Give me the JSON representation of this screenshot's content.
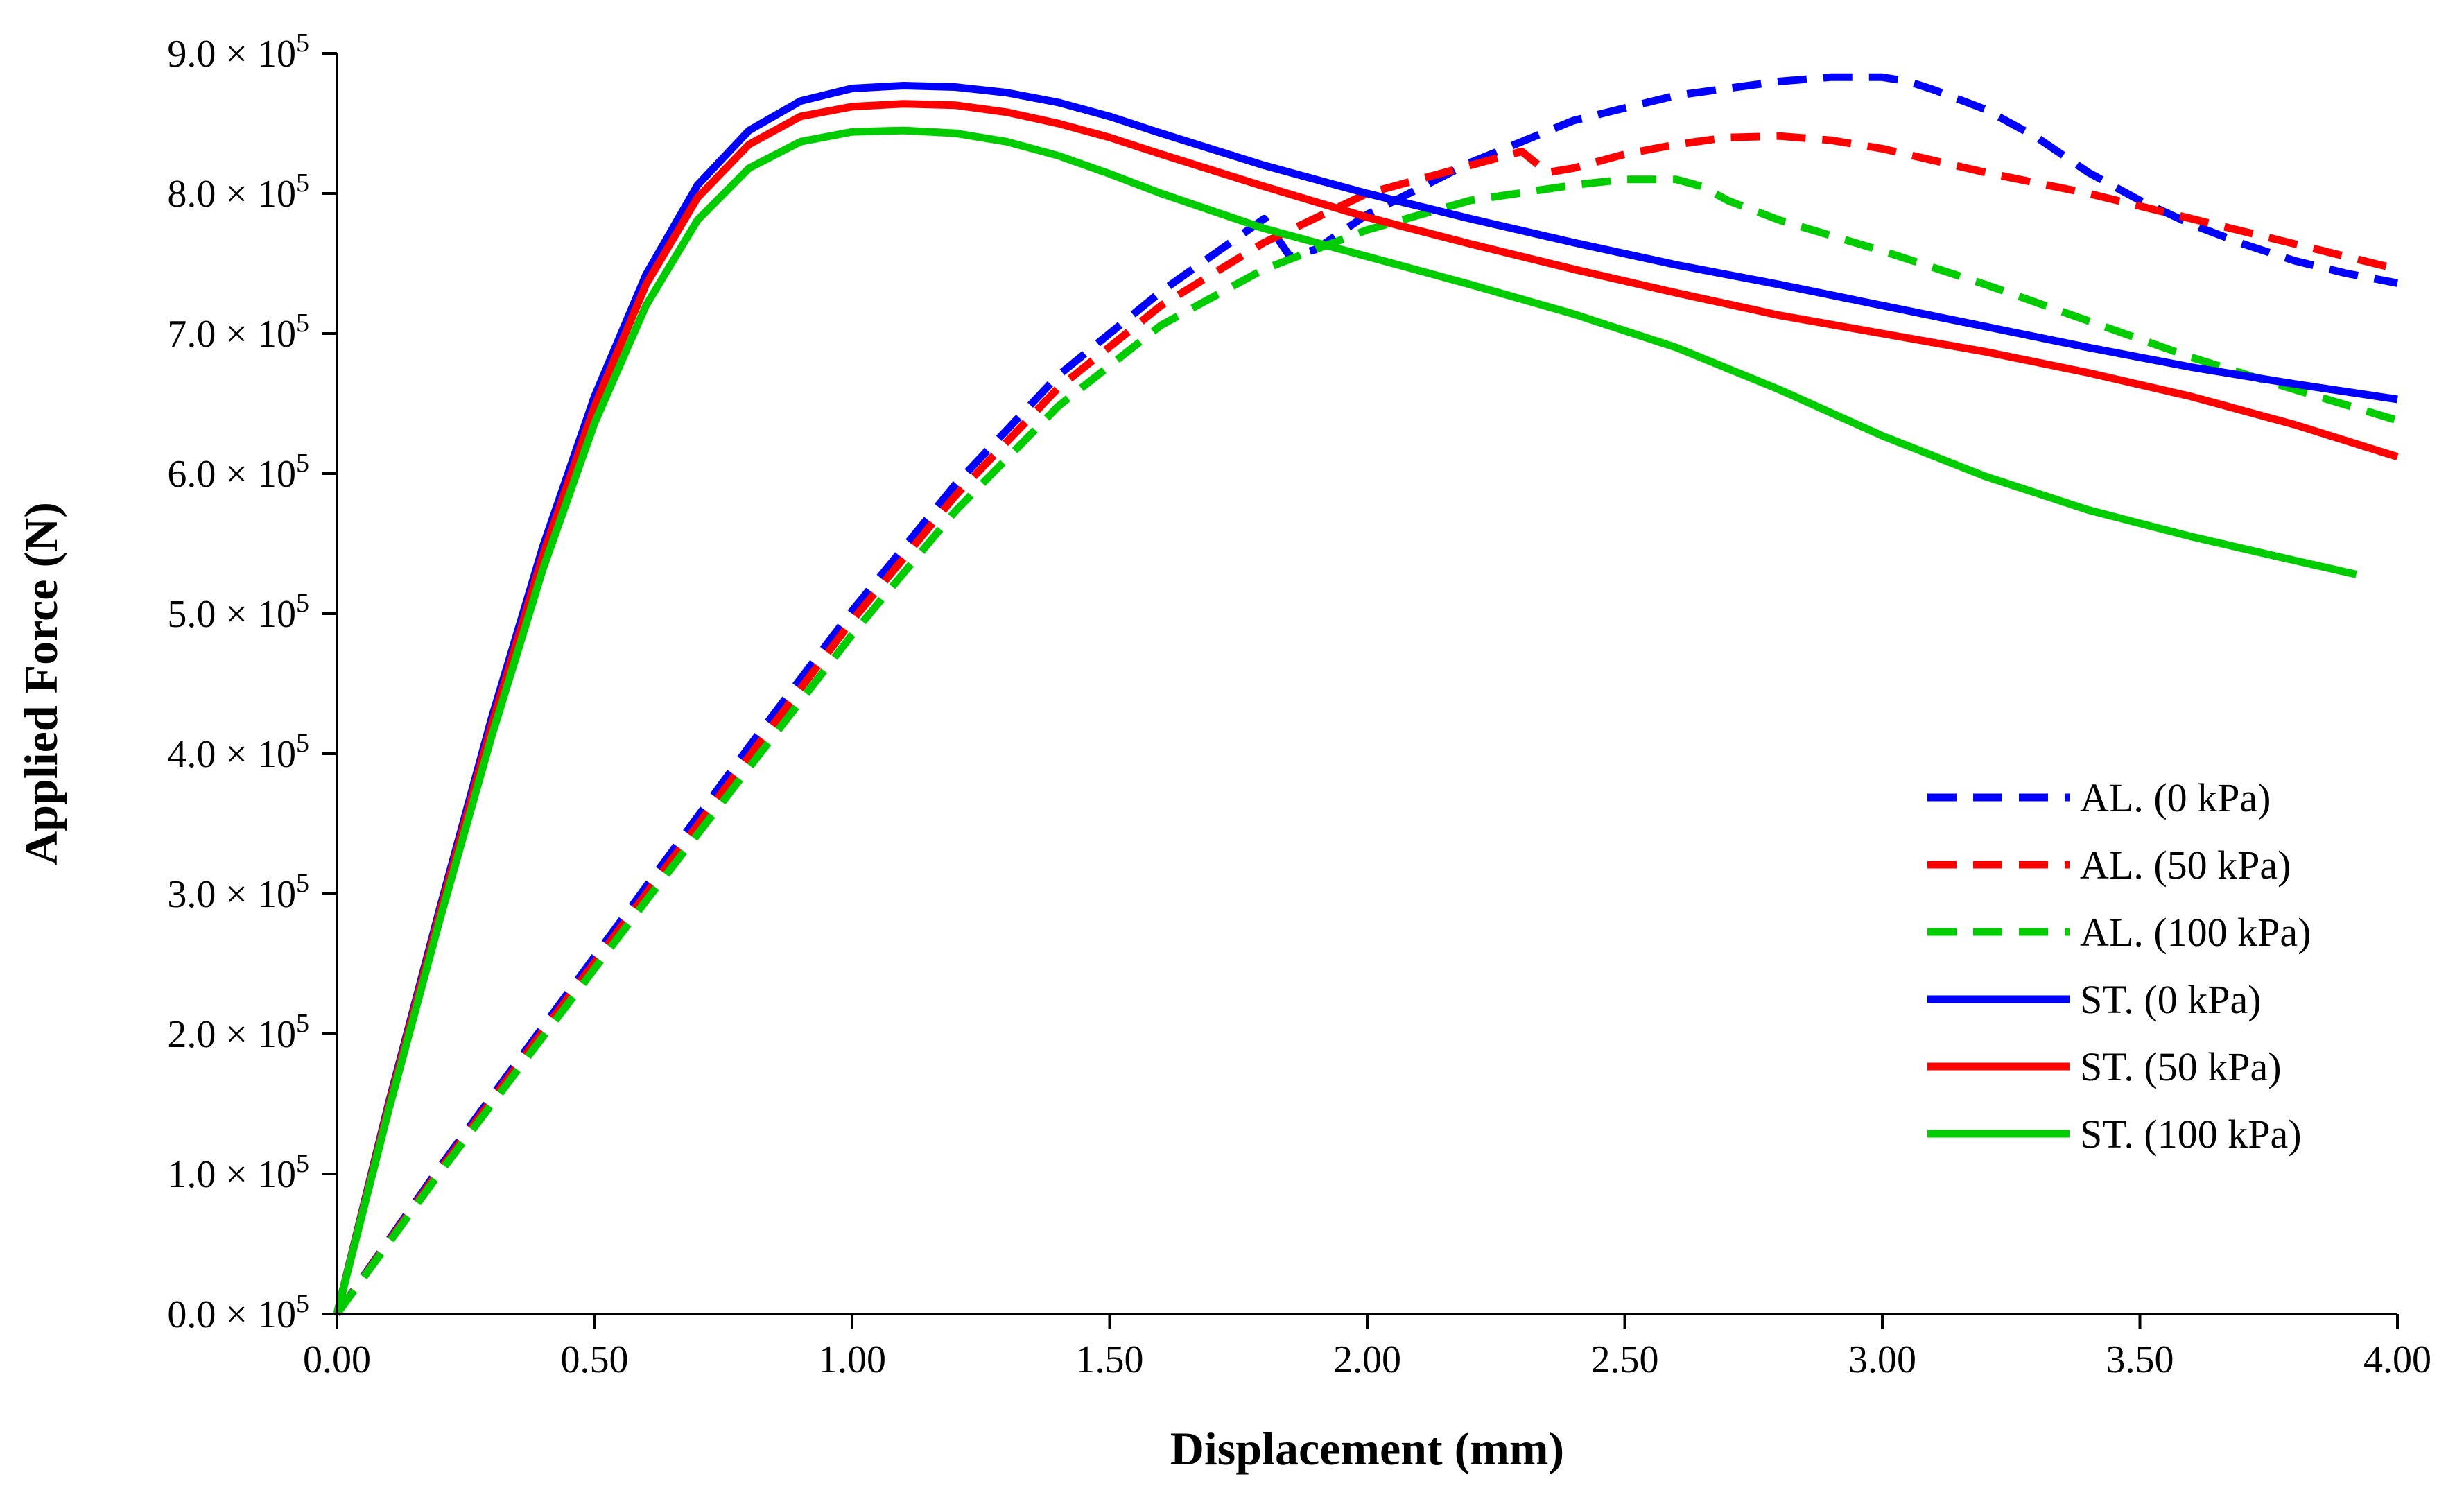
{
  "chart_data": {
    "type": "line",
    "title": "",
    "xlabel": "Displacement (mm)",
    "ylabel": "Applied Force (N)",
    "xlim": [
      0,
      4
    ],
    "ylim": [
      0,
      900000
    ],
    "x_ticks": [
      "0.00",
      "0.50",
      "1.00",
      "1.50",
      "2.00",
      "2.50",
      "3.00",
      "3.50",
      "4.00"
    ],
    "y_ticks": [
      {
        "value": 0,
        "mantissa": "0.0 × 10",
        "exponent": "5"
      },
      {
        "value": 100000,
        "mantissa": "1.0 × 10",
        "exponent": "5"
      },
      {
        "value": 200000,
        "mantissa": "2.0 × 10",
        "exponent": "5"
      },
      {
        "value": 300000,
        "mantissa": "3.0 × 10",
        "exponent": "5"
      },
      {
        "value": 400000,
        "mantissa": "4.0 × 10",
        "exponent": "5"
      },
      {
        "value": 500000,
        "mantissa": "5.0 × 10",
        "exponent": "5"
      },
      {
        "value": 600000,
        "mantissa": "6.0 × 10",
        "exponent": "5"
      },
      {
        "value": 700000,
        "mantissa": "7.0 × 10",
        "exponent": "5"
      },
      {
        "value": 800000,
        "mantissa": "8.0 × 10",
        "exponent": "5"
      },
      {
        "value": 900000,
        "mantissa": "9.0 × 10",
        "exponent": "5"
      }
    ],
    "grid": false,
    "legend_position": "bottom-right",
    "series": [
      {
        "name": "AL. (0 kPa)",
        "color": "#0000ff",
        "dash": true,
        "x": [
          0,
          0.2,
          0.4,
          0.6,
          0.8,
          1.0,
          1.2,
          1.4,
          1.6,
          1.8,
          1.85,
          1.9,
          2.0,
          2.2,
          2.4,
          2.6,
          2.8,
          2.9,
          3.0,
          3.05,
          3.1,
          3.2,
          3.3,
          3.4,
          3.5,
          3.6,
          3.7,
          3.8,
          3.9,
          4.0
        ],
        "y": [
          0,
          105000,
          205000,
          305000,
          405000,
          502000,
          592000,
          670000,
          730000,
          782000,
          755000,
          760000,
          785000,
          822000,
          852000,
          870000,
          880000,
          883000,
          883000,
          880000,
          874000,
          860000,
          840000,
          815000,
          795000,
          778000,
          764000,
          752000,
          743000,
          736000
        ]
      },
      {
        "name": "AL. (50 kPa)",
        "color": "#ff0000",
        "dash": true,
        "x": [
          0,
          0.2,
          0.4,
          0.6,
          0.8,
          1.0,
          1.2,
          1.4,
          1.6,
          1.8,
          2.0,
          2.2,
          2.3,
          2.35,
          2.4,
          2.5,
          2.6,
          2.7,
          2.8,
          2.9,
          3.0,
          3.2,
          3.4,
          3.6,
          3.8,
          4.0
        ],
        "y": [
          0,
          103000,
          202000,
          300000,
          398000,
          495000,
          584000,
          661000,
          720000,
          765000,
          800000,
          820000,
          830000,
          815000,
          818000,
          828000,
          835000,
          840000,
          841000,
          838000,
          832000,
          815000,
          800000,
          782000,
          764000,
          746000
        ]
      },
      {
        "name": "AL. (100 kPa)",
        "color": "#00cc00",
        "dash": true,
        "x": [
          0,
          0.2,
          0.4,
          0.6,
          0.8,
          1.0,
          1.2,
          1.4,
          1.6,
          1.8,
          2.0,
          2.2,
          2.4,
          2.5,
          2.6,
          2.65,
          2.7,
          2.8,
          3.0,
          3.2,
          3.4,
          3.6,
          3.8,
          4.0
        ],
        "y": [
          0,
          101000,
          198000,
          295000,
          390000,
          485000,
          573000,
          648000,
          706000,
          746000,
          774000,
          795000,
          806000,
          810000,
          810000,
          805000,
          795000,
          781000,
          759000,
          735000,
          709000,
          683000,
          660000,
          638000
        ]
      },
      {
        "name": "ST. (0 kPa)",
        "color": "#0000ff",
        "dash": false,
        "x": [
          0,
          0.1,
          0.2,
          0.3,
          0.4,
          0.5,
          0.6,
          0.7,
          0.8,
          0.9,
          1.0,
          1.1,
          1.2,
          1.3,
          1.4,
          1.5,
          1.6,
          1.8,
          2.0,
          2.2,
          2.4,
          2.6,
          2.8,
          3.0,
          3.2,
          3.4,
          3.6,
          3.8,
          4.0
        ],
        "y": [
          0,
          150000,
          290000,
          425000,
          548000,
          655000,
          742000,
          806000,
          845000,
          866000,
          875000,
          877000,
          876000,
          872000,
          865000,
          855000,
          843000,
          820000,
          800000,
          782000,
          765000,
          749000,
          735000,
          720000,
          705000,
          690000,
          676000,
          664000,
          653000
        ]
      },
      {
        "name": "ST. (50 kPa)",
        "color": "#ff0000",
        "dash": false,
        "x": [
          0,
          0.1,
          0.2,
          0.3,
          0.4,
          0.5,
          0.6,
          0.7,
          0.8,
          0.9,
          1.0,
          1.1,
          1.2,
          1.3,
          1.4,
          1.5,
          1.6,
          1.8,
          2.0,
          2.2,
          2.4,
          2.6,
          2.8,
          3.0,
          3.2,
          3.4,
          3.6,
          3.8,
          4.0
        ],
        "y": [
          0,
          148000,
          287000,
          420000,
          542000,
          648000,
          735000,
          797000,
          835000,
          855000,
          862000,
          864000,
          863000,
          858000,
          850000,
          840000,
          828000,
          805000,
          783000,
          764000,
          746000,
          729000,
          713000,
          700000,
          687000,
          672000,
          655000,
          635000,
          612000
        ]
      },
      {
        "name": "ST. (100 kPa)",
        "color": "#00cc00",
        "dash": false,
        "x": [
          0,
          0.1,
          0.2,
          0.3,
          0.4,
          0.5,
          0.6,
          0.7,
          0.8,
          0.9,
          1.0,
          1.1,
          1.2,
          1.3,
          1.4,
          1.5,
          1.6,
          1.8,
          2.0,
          2.2,
          2.4,
          2.6,
          2.8,
          3.0,
          3.2,
          3.4,
          3.6,
          3.8,
          3.92
        ],
        "y": [
          0,
          145000,
          282000,
          412000,
          532000,
          636000,
          720000,
          781000,
          818000,
          837000,
          844000,
          845000,
          843000,
          837000,
          827000,
          814000,
          800000,
          775000,
          755000,
          735000,
          714000,
          690000,
          660000,
          627000,
          598000,
          574000,
          555000,
          538000,
          528000
        ]
      }
    ]
  }
}
